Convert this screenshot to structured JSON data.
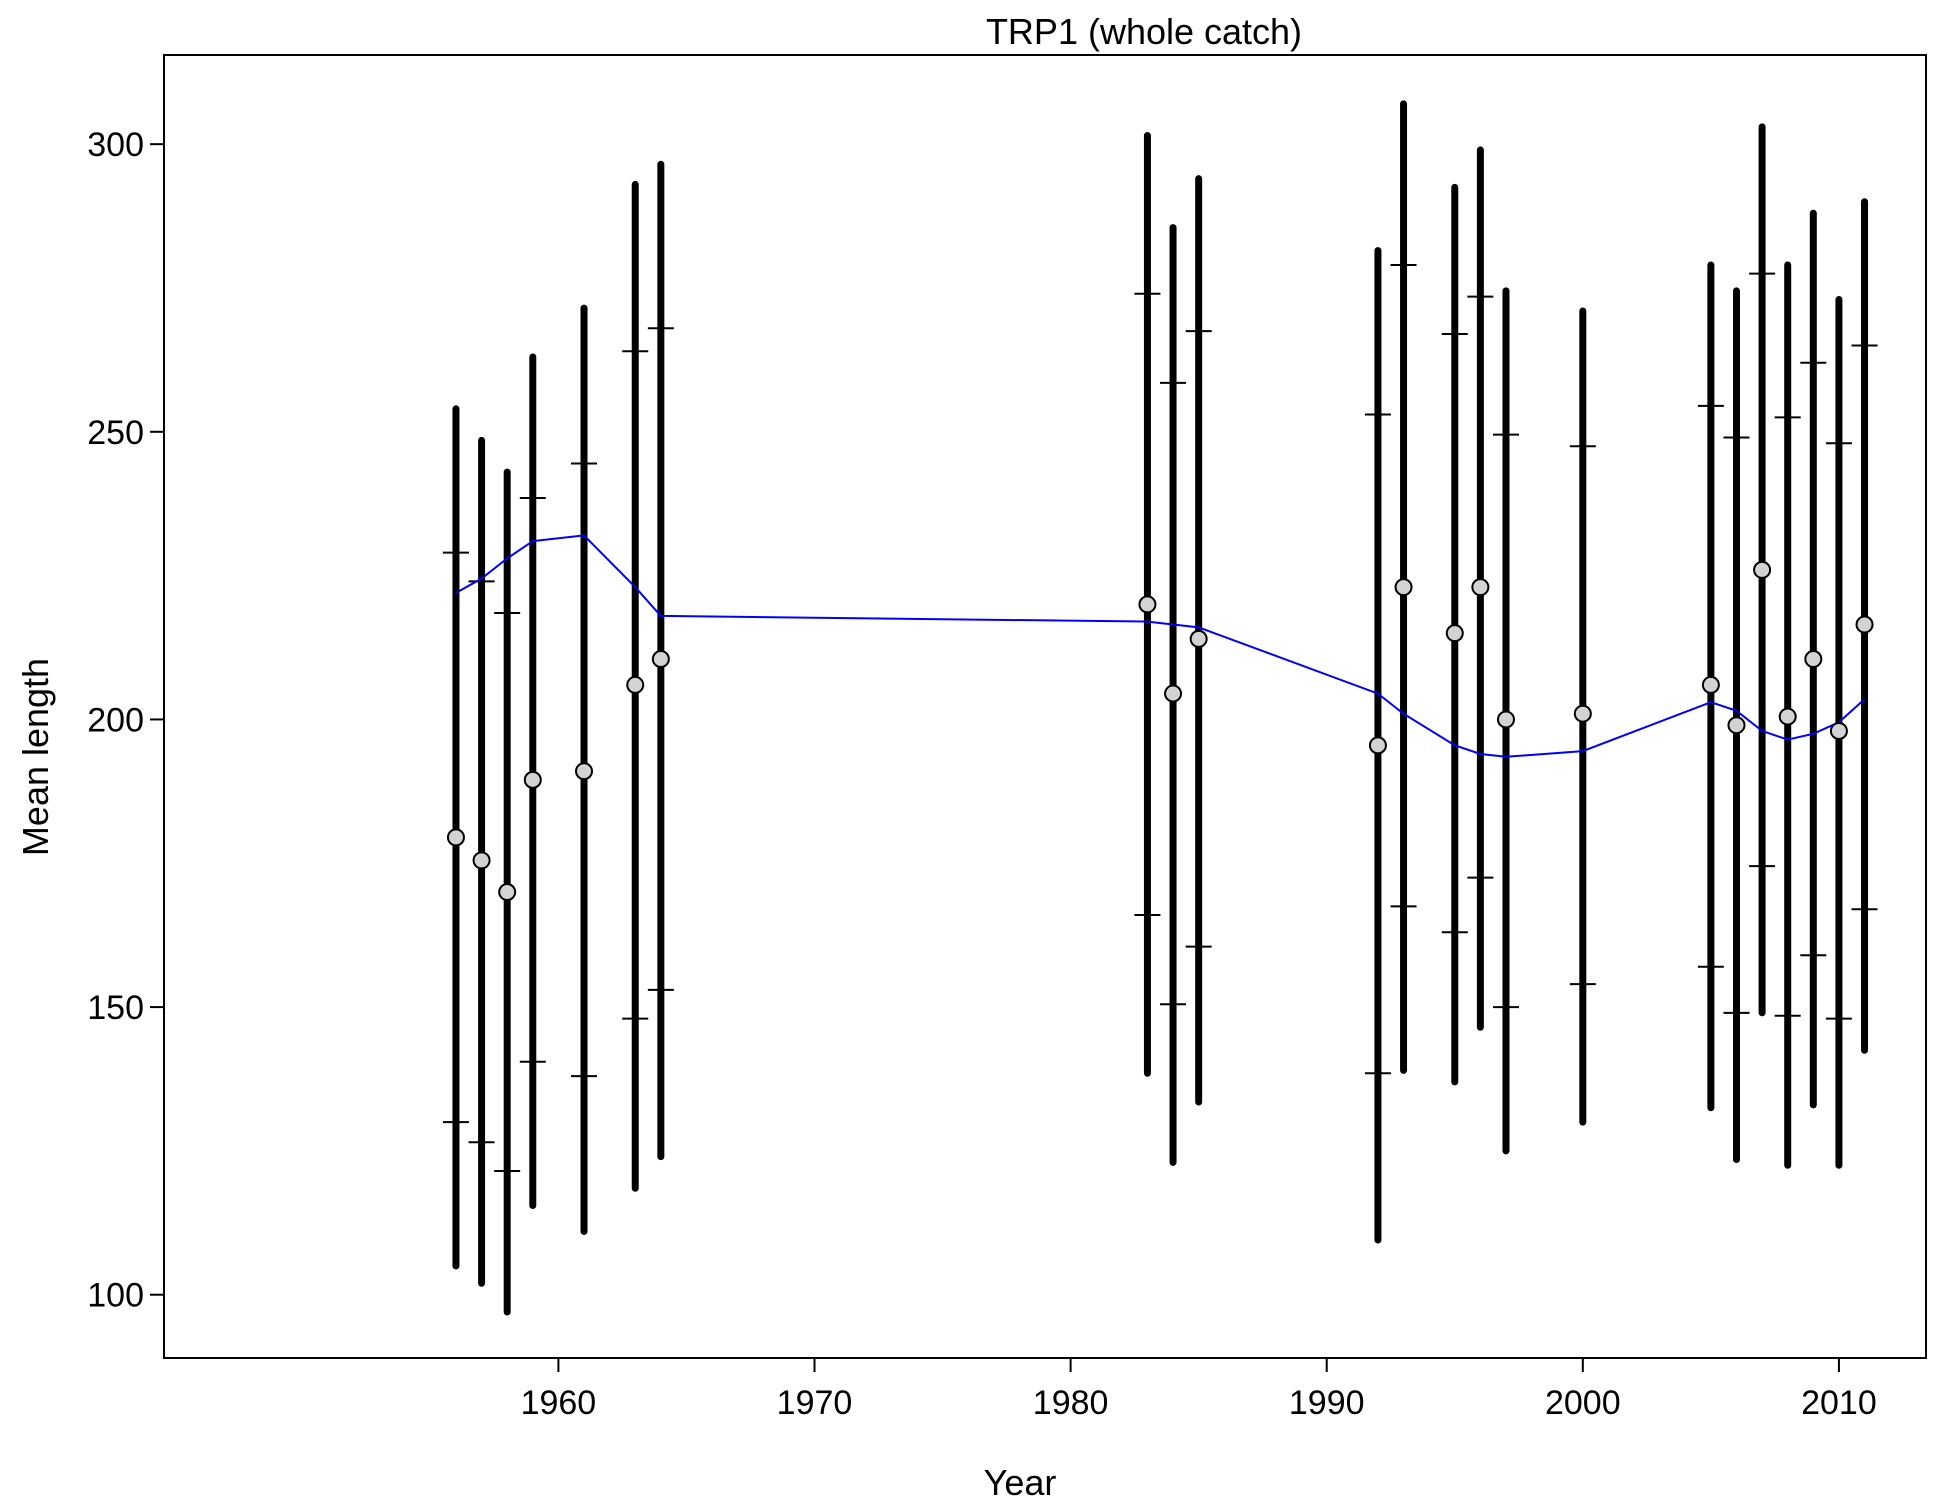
{
  "chart_data": {
    "type": "scatter",
    "title": "TRP1 (whole catch)",
    "xlabel": "Year",
    "ylabel": "Mean length",
    "xlim": [
      1944.6,
      2013.4
    ],
    "ylim": [
      89,
      315.5
    ],
    "xticks": [
      1960,
      1970,
      1980,
      1990,
      2000,
      2010
    ],
    "yticks": [
      100,
      150,
      200,
      250,
      300
    ],
    "grid": false,
    "legend": "none",
    "colors": {
      "interval": "#000000",
      "point_fill": "#d3d3d3",
      "point_stroke": "#000000",
      "trend": "#0000ff"
    },
    "observations": [
      {
        "year": 1956,
        "mean": 179.5,
        "lower": 105,
        "upper": 254,
        "q_low": 130,
        "q_high": 229
      },
      {
        "year": 1957,
        "mean": 175.5,
        "lower": 102,
        "upper": 248.5,
        "q_low": 126.5,
        "q_high": 224
      },
      {
        "year": 1958,
        "mean": 170,
        "lower": 97,
        "upper": 243,
        "q_low": 121.5,
        "q_high": 218.5
      },
      {
        "year": 1959,
        "mean": 189.5,
        "lower": 115.5,
        "upper": 263,
        "q_low": 140.5,
        "q_high": 238.5
      },
      {
        "year": 1961,
        "mean": 191,
        "lower": 111,
        "upper": 271.5,
        "q_low": 138,
        "q_high": 244.5
      },
      {
        "year": 1963,
        "mean": 206,
        "lower": 118.5,
        "upper": 293,
        "q_low": 148,
        "q_high": 264
      },
      {
        "year": 1964,
        "mean": 210.5,
        "lower": 124,
        "upper": 296.5,
        "q_low": 153,
        "q_high": 268
      },
      {
        "year": 1983,
        "mean": 220,
        "lower": 138.5,
        "upper": 301.5,
        "q_low": 166,
        "q_high": 274
      },
      {
        "year": 1984,
        "mean": 204.5,
        "lower": 123,
        "upper": 285.5,
        "q_low": 150.5,
        "q_high": 258.5
      },
      {
        "year": 1985,
        "mean": 214,
        "lower": 133.5,
        "upper": 294,
        "q_low": 160.5,
        "q_high": 267.5
      },
      {
        "year": 1992,
        "mean": 195.5,
        "lower": 109.5,
        "upper": 281.5,
        "q_low": 138.5,
        "q_high": 253
      },
      {
        "year": 1993,
        "mean": 223,
        "lower": 139,
        "upper": 307,
        "q_low": 167.5,
        "q_high": 279
      },
      {
        "year": 1995,
        "mean": 215,
        "lower": 137,
        "upper": 292.5,
        "q_low": 163,
        "q_high": 267
      },
      {
        "year": 1996,
        "mean": 223,
        "lower": 146.5,
        "upper": 299,
        "q_low": 172.5,
        "q_high": 273.5
      },
      {
        "year": 1997,
        "mean": 200,
        "lower": 125,
        "upper": 274.5,
        "q_low": 150,
        "q_high": 249.5
      },
      {
        "year": 2000,
        "mean": 201,
        "lower": 130,
        "upper": 271,
        "q_low": 154,
        "q_high": 247.5
      },
      {
        "year": 2005,
        "mean": 206,
        "lower": 132.5,
        "upper": 279,
        "q_low": 157,
        "q_high": 254.5
      },
      {
        "year": 2006,
        "mean": 199,
        "lower": 123.5,
        "upper": 274.5,
        "q_low": 149,
        "q_high": 249
      },
      {
        "year": 2007,
        "mean": 226,
        "lower": 149,
        "upper": 303,
        "q_low": 174.5,
        "q_high": 277.5
      },
      {
        "year": 2008,
        "mean": 200.5,
        "lower": 122.5,
        "upper": 279,
        "q_low": 148.5,
        "q_high": 252.5
      },
      {
        "year": 2009,
        "mean": 210.5,
        "lower": 133,
        "upper": 288,
        "q_low": 159,
        "q_high": 262
      },
      {
        "year": 2010,
        "mean": 198,
        "lower": 122.5,
        "upper": 273,
        "q_low": 148,
        "q_high": 248
      },
      {
        "year": 2011,
        "mean": 216.5,
        "lower": 142.5,
        "upper": 290,
        "q_low": 167,
        "q_high": 265
      }
    ],
    "trend": {
      "name": "",
      "x": [
        1956,
        1957,
        1958,
        1959,
        1961,
        1963,
        1964,
        1983,
        1984,
        1985,
        1992,
        1993,
        1995,
        1996,
        1997,
        2000,
        2005,
        2006,
        2007,
        2008,
        2009,
        2010,
        2011
      ],
      "y": [
        222,
        224.5,
        228,
        231,
        232,
        223,
        218,
        217,
        216.5,
        216,
        204.5,
        201,
        195.5,
        194,
        193.5,
        194.5,
        203,
        201.5,
        198,
        196.5,
        197.5,
        199.5,
        203.5
      ]
    }
  }
}
